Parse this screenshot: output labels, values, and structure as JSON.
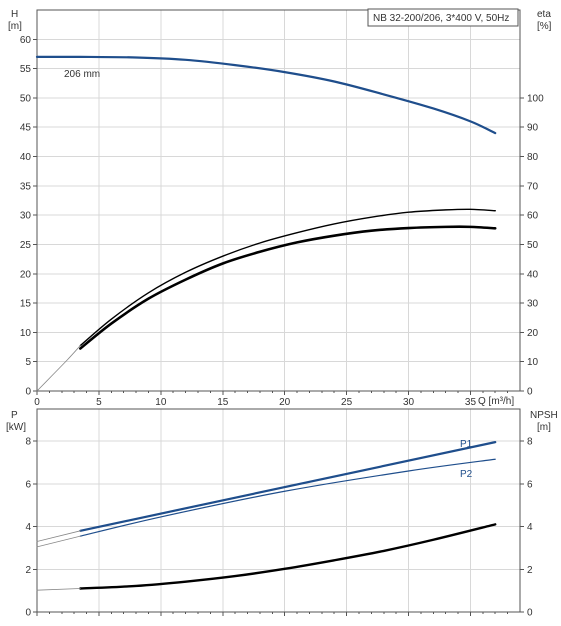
{
  "chart_data": [
    {
      "type": "line",
      "title": "NB 32-200/206, 3*400 V, 50Hz",
      "x_axis": {
        "label": "Q [m³/h]",
        "min": 0,
        "max": 39,
        "ticks": [
          0,
          5,
          10,
          15,
          20,
          25,
          30,
          35
        ]
      },
      "left_axis": {
        "label_top": "H",
        "label_unit": "[m]",
        "min": 0,
        "max": 65,
        "ticks": [
          0,
          5,
          10,
          15,
          20,
          25,
          30,
          35,
          40,
          45,
          50,
          55,
          60
        ]
      },
      "right_axis": {
        "label_top": "eta",
        "label_unit": "[%]",
        "min": 0,
        "max": 130,
        "ticks": [
          0,
          10,
          20,
          30,
          40,
          50,
          60,
          70,
          80,
          90,
          100
        ]
      },
      "grid": true,
      "series": [
        {
          "name": "206 mm",
          "axis": "left",
          "color": "#1f4e8c",
          "width": 2.2,
          "x": [
            0,
            3.5,
            8,
            12,
            16,
            20,
            24,
            28,
            32,
            35,
            37
          ],
          "y": [
            57,
            57,
            56.9,
            56.5,
            55.6,
            54.4,
            52.8,
            50.6,
            48.2,
            46,
            44
          ]
        },
        {
          "axis": "right",
          "color": "#000000",
          "width": 1.4,
          "x": [
            3.5,
            6,
            9,
            12,
            15,
            18,
            21,
            24,
            27,
            30,
            33,
            35,
            37
          ],
          "y": [
            15.5,
            24.5,
            33.5,
            40.5,
            46,
            50.5,
            54,
            57,
            59.3,
            61,
            61.8,
            62,
            61.5
          ]
        },
        {
          "axis": "right",
          "color": "#000000",
          "width": 2.6,
          "x": [
            3.5,
            6,
            9,
            12,
            15,
            18,
            21,
            24,
            27,
            30,
            33,
            35,
            37
          ],
          "y": [
            14.5,
            23,
            31.5,
            38,
            43.5,
            47.5,
            50.7,
            53,
            54.7,
            55.6,
            56,
            56,
            55.5
          ]
        },
        {
          "axis": "right",
          "color": "#888888",
          "width": 0.8,
          "x": [
            0,
            1.2,
            2.4,
            3.5
          ],
          "y": [
            0,
            5.2,
            10.4,
            15.5
          ]
        }
      ]
    },
    {
      "type": "line",
      "x_axis": {
        "min": 0,
        "max": 39
      },
      "left_axis": {
        "label_top": "P",
        "label_unit": "[kW]",
        "min": 0,
        "max": 9.5,
        "ticks": [
          0,
          2,
          4,
          6,
          8
        ]
      },
      "right_axis": {
        "label_top": "NPSH",
        "label_unit": "[m]",
        "min": 0,
        "max": 9.5,
        "ticks": [
          0,
          2,
          4,
          6,
          8
        ]
      },
      "grid": true,
      "series": [
        {
          "name": "P1",
          "axis": "left",
          "color": "#1f4e8c",
          "width": 2.2,
          "x": [
            3.5,
            37
          ],
          "y": [
            3.8,
            7.95
          ]
        },
        {
          "name": "P2",
          "axis": "left",
          "color": "#1f4e8c",
          "width": 1.2,
          "x": [
            3.5,
            10,
            20,
            30,
            37
          ],
          "y": [
            3.55,
            4.45,
            5.65,
            6.6,
            7.15
          ]
        },
        {
          "axis": "right",
          "color": "#000000",
          "width": 2.4,
          "x": [
            3.5,
            8,
            12,
            16,
            20,
            24,
            28,
            32,
            37
          ],
          "y": [
            1.1,
            1.22,
            1.42,
            1.68,
            2.02,
            2.42,
            2.86,
            3.38,
            4.1
          ]
        },
        {
          "axis": "left",
          "color": "#888888",
          "width": 0.8,
          "x": [
            0,
            3.5
          ],
          "y": [
            3.3,
            3.8
          ]
        },
        {
          "axis": "left",
          "color": "#888888",
          "width": 0.8,
          "x": [
            0,
            3.5
          ],
          "y": [
            3.05,
            3.55
          ]
        },
        {
          "axis": "right",
          "color": "#888888",
          "width": 0.8,
          "x": [
            0,
            3.5
          ],
          "y": [
            1.02,
            1.1
          ]
        }
      ]
    }
  ]
}
